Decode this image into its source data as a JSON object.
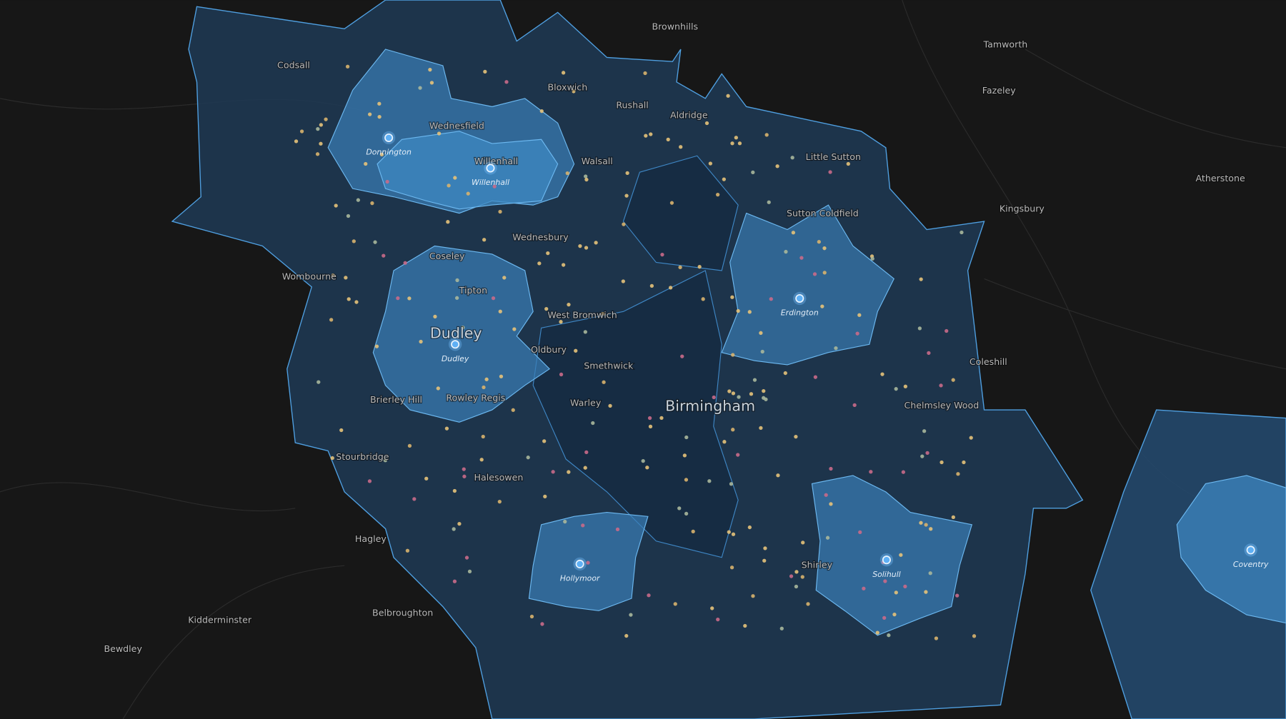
{
  "places": [
    "Brownhills",
    "Tamworth",
    "Codsall",
    "Bloxwich",
    "Fazeley",
    "Rushall",
    "Aldridge",
    "Wednesfield",
    "Little Sutton",
    "Willenhall",
    "Walsall",
    "Atherstone",
    "Sutton Coldfield",
    "Kingsbury",
    "Wednesbury",
    "Coseley",
    "Wombourne",
    "Tipton",
    "West Bromwich",
    "Dudley",
    "Oldbury",
    "Smethwick",
    "Coleshill",
    "Brierley Hill",
    "Rowley Regis",
    "Warley",
    "Birmingham",
    "Chelmsley Wood",
    "Stourbridge",
    "Halesowen",
    "Shirley",
    "Hagley",
    "Belbroughton",
    "Kidderminster",
    "Bewdley"
  ],
  "hubs": [
    "Donnington",
    "Willenhall",
    "Dudley",
    "Erdington",
    "Hollymoor",
    "Solihull",
    "Coventry"
  ]
}
